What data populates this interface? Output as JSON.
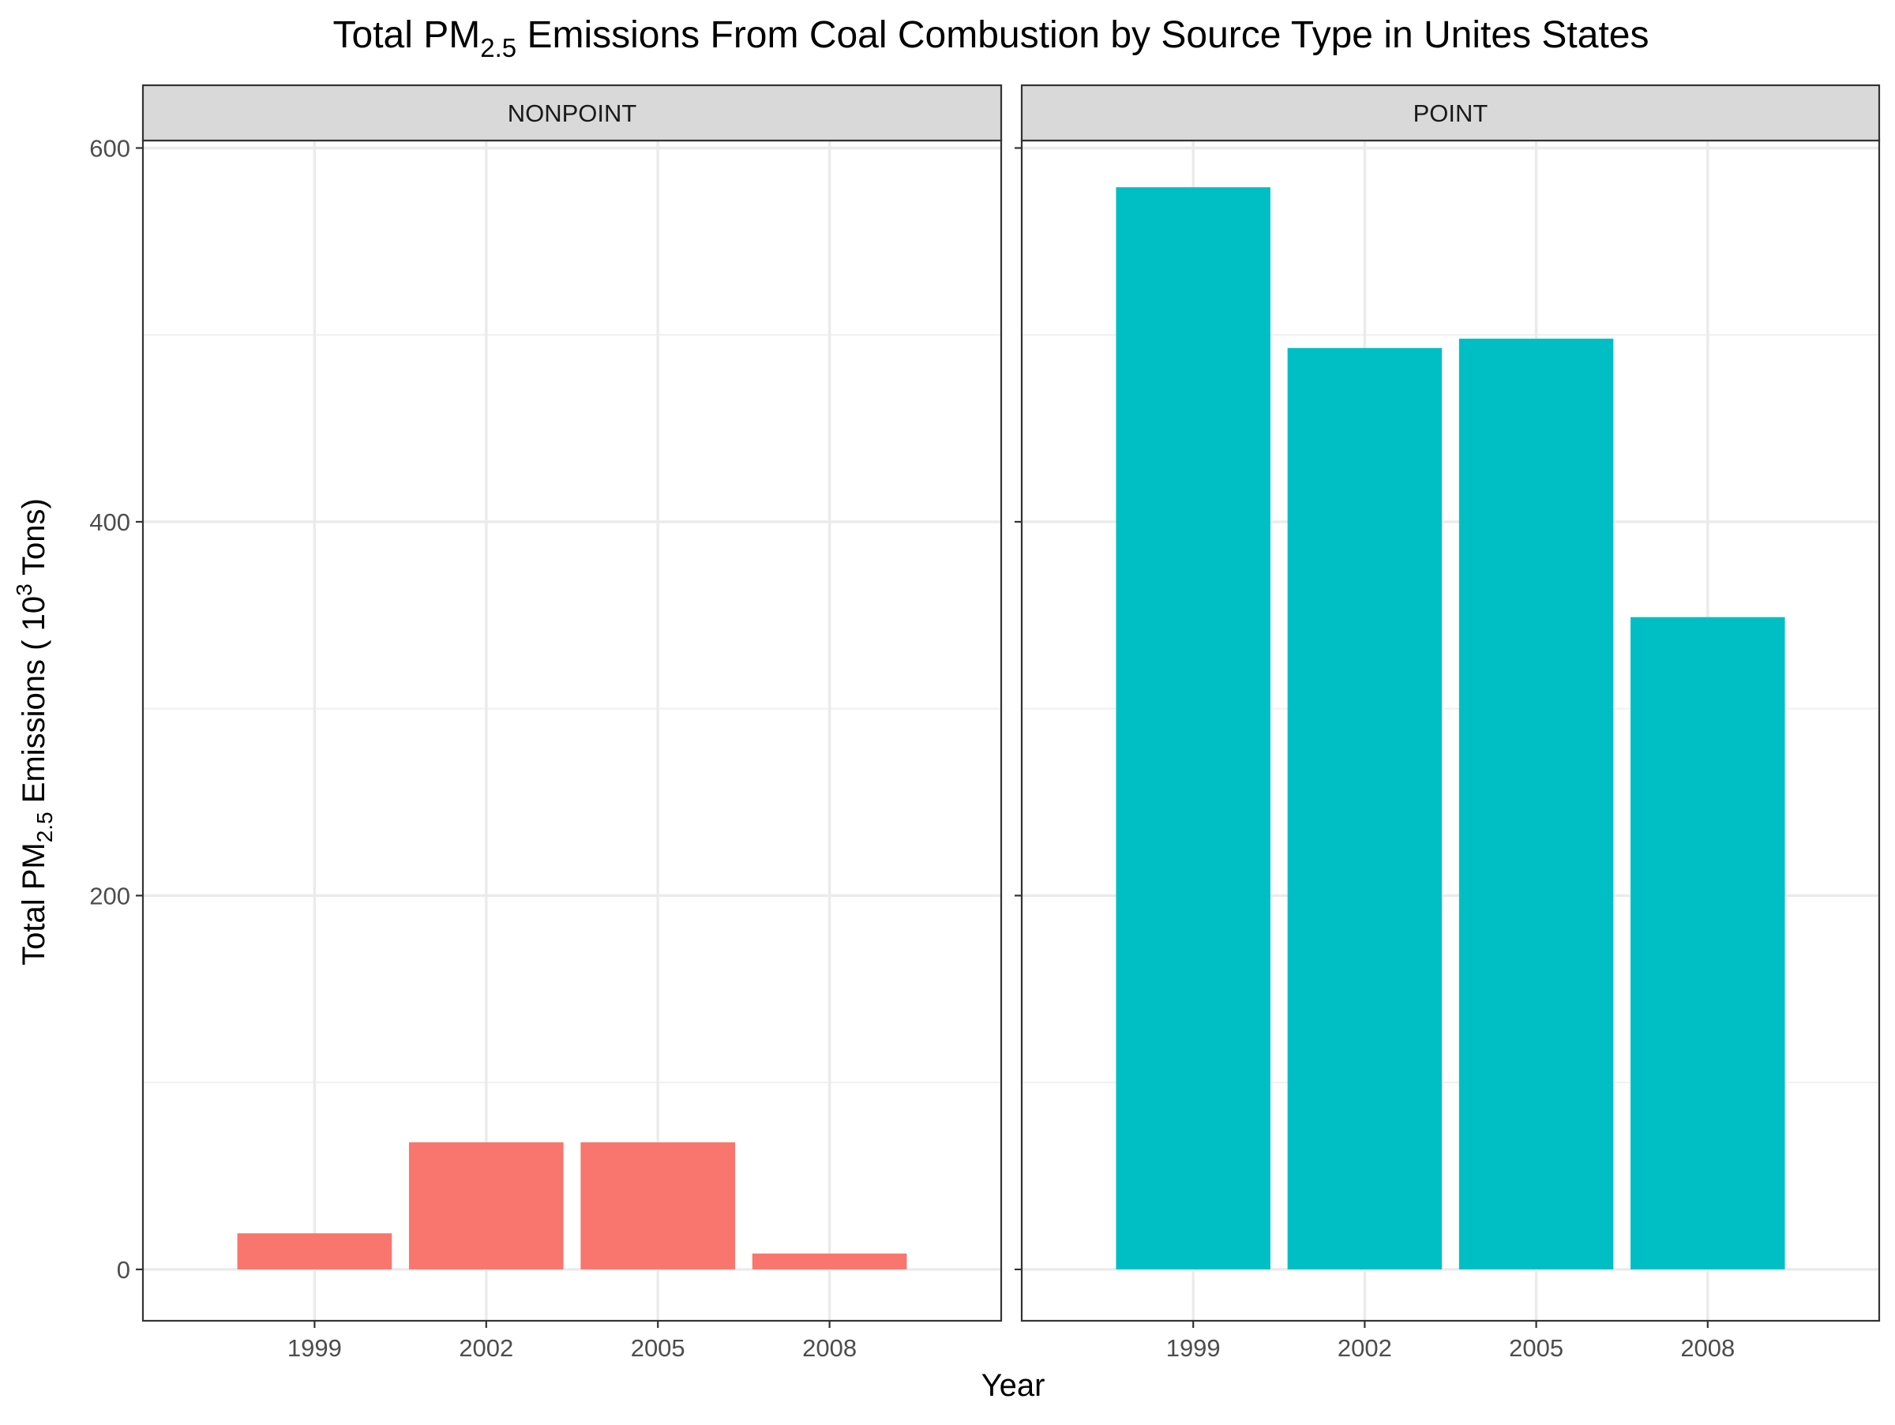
{
  "chart_data": {
    "type": "bar",
    "title": {
      "prefix": "Total PM",
      "subscript": "2.5",
      "suffix": " Emissions From Coal Combustion by Source Type in Unites States"
    },
    "xlabel": "Year",
    "ylabel": {
      "prefix": "Total PM",
      "subscript": "2.5",
      "middle": " Emissions ( 10",
      "superscript": "3",
      "suffix": " Tons)"
    },
    "ylim": [
      -27.5,
      604
    ],
    "yticks": [
      0,
      200,
      400,
      600
    ],
    "ygrid_minor": [
      100,
      300,
      500
    ],
    "grid": true,
    "categories": [
      "1999",
      "2002",
      "2005",
      "2008"
    ],
    "panels": [
      {
        "label": "NONPOINT",
        "color": "#F8766D",
        "values": [
          19.3,
          68.0,
          68.0,
          8.5
        ]
      },
      {
        "label": "POINT",
        "color": "#00BFC4",
        "values": [
          579.0,
          493.0,
          498.0,
          349.0
        ]
      }
    ]
  }
}
